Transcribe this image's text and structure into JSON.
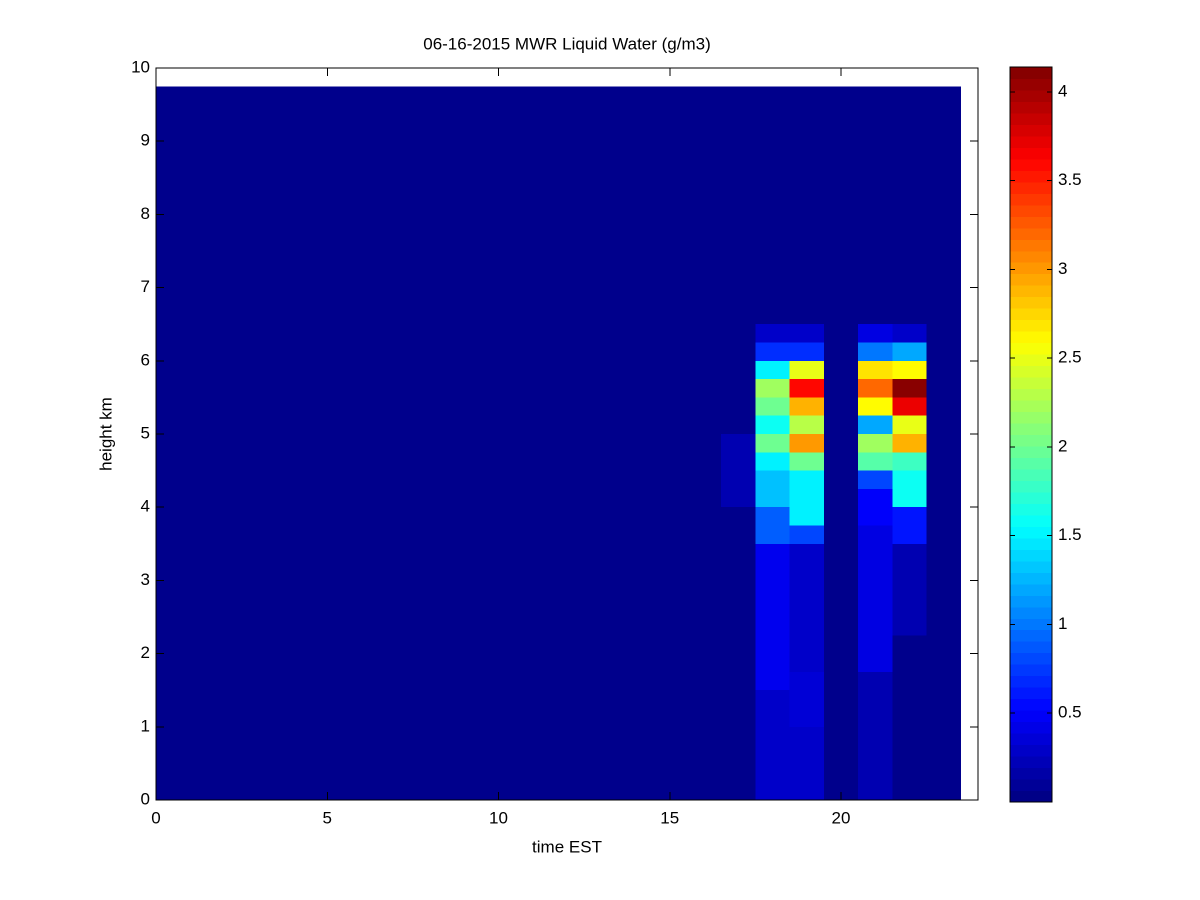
{
  "chart_data": {
    "type": "heatmap",
    "title": "06-16-2015 MWR Liquid Water (g/m3)",
    "x_label": "time EST",
    "y_label": "height km",
    "xlim": [
      0,
      24
    ],
    "xticks": [
      0,
      5,
      10,
      15,
      20
    ],
    "ylim": [
      0,
      10
    ],
    "yticks": [
      0,
      1,
      2,
      3,
      4,
      5,
      6,
      7,
      8,
      9,
      10
    ],
    "colormap": "jet",
    "clim": [
      0,
      4.14
    ],
    "cticks": [
      0.5,
      1,
      1.5,
      2,
      2.5,
      3,
      3.5,
      4
    ],
    "x_edges": [
      0,
      16.5,
      17.5,
      18.5,
      19.5,
      20.5,
      21.5,
      22.5,
      23.5
    ],
    "y_edges": [
      0,
      0.25,
      0.5,
      0.75,
      1,
      1.25,
      1.5,
      1.75,
      2,
      2.25,
      2.5,
      2.75,
      3,
      3.25,
      3.5,
      3.75,
      4,
      4.25,
      4.5,
      4.75,
      5,
      5.25,
      5.5,
      5.75,
      6,
      6.25,
      6.5,
      9.75
    ],
    "z": [
      [
        0.05,
        0.05,
        0.3,
        0.3,
        0.05,
        0.2,
        0.05,
        0.05
      ],
      [
        0.05,
        0.05,
        0.3,
        0.3,
        0.05,
        0.2,
        0.05,
        0.05
      ],
      [
        0.05,
        0.05,
        0.3,
        0.3,
        0.05,
        0.2,
        0.05,
        0.05
      ],
      [
        0.05,
        0.05,
        0.3,
        0.3,
        0.05,
        0.2,
        0.05,
        0.05
      ],
      [
        0.05,
        0.05,
        0.3,
        0.35,
        0.05,
        0.2,
        0.05,
        0.05
      ],
      [
        0.05,
        0.05,
        0.3,
        0.35,
        0.05,
        0.2,
        0.05,
        0.05
      ],
      [
        0.05,
        0.05,
        0.45,
        0.35,
        0.05,
        0.2,
        0.05,
        0.05
      ],
      [
        0.05,
        0.05,
        0.45,
        0.3,
        0.05,
        0.4,
        0.05,
        0.05
      ],
      [
        0.05,
        0.05,
        0.45,
        0.3,
        0.05,
        0.4,
        0.05,
        0.05
      ],
      [
        0.05,
        0.05,
        0.45,
        0.3,
        0.05,
        0.4,
        0.2,
        0.05
      ],
      [
        0.05,
        0.05,
        0.45,
        0.3,
        0.05,
        0.4,
        0.2,
        0.05
      ],
      [
        0.05,
        0.05,
        0.45,
        0.3,
        0.05,
        0.4,
        0.2,
        0.05
      ],
      [
        0.05,
        0.05,
        0.45,
        0.3,
        0.05,
        0.4,
        0.2,
        0.05
      ],
      [
        0.05,
        0.05,
        0.45,
        0.3,
        0.05,
        0.4,
        0.2,
        0.05
      ],
      [
        0.05,
        0.05,
        0.9,
        0.8,
        0.05,
        0.4,
        0.6,
        0.05
      ],
      [
        0.05,
        0.05,
        0.9,
        1.5,
        0.05,
        0.5,
        0.6,
        0.05
      ],
      [
        0.05,
        0.2,
        1.3,
        1.5,
        0.05,
        0.5,
        1.6,
        0.05
      ],
      [
        0.05,
        0.2,
        1.3,
        1.5,
        0.05,
        0.8,
        1.6,
        0.05
      ],
      [
        0.05,
        0.2,
        1.5,
        2.0,
        0.05,
        1.9,
        1.8,
        0.05
      ],
      [
        0.05,
        0.2,
        2.0,
        3.0,
        0.05,
        2.2,
        2.9,
        0.05
      ],
      [
        0.05,
        0.05,
        1.6,
        2.3,
        0.05,
        1.2,
        2.5,
        0.05
      ],
      [
        0.05,
        0.05,
        2.0,
        2.9,
        0.05,
        2.6,
        3.7,
        0.05
      ],
      [
        0.05,
        0.05,
        2.2,
        3.6,
        0.05,
        3.2,
        4.1,
        0.05
      ],
      [
        0.05,
        0.05,
        1.5,
        2.5,
        0.05,
        2.7,
        2.6,
        0.05
      ],
      [
        0.05,
        0.05,
        0.7,
        0.7,
        0.05,
        1.0,
        1.2,
        0.05
      ],
      [
        0.05,
        0.05,
        0.3,
        0.3,
        0.05,
        0.4,
        0.3,
        0.05
      ],
      [
        0.05,
        0.05,
        0.05,
        0.05,
        0.05,
        0.05,
        0.05,
        0.05
      ]
    ]
  }
}
